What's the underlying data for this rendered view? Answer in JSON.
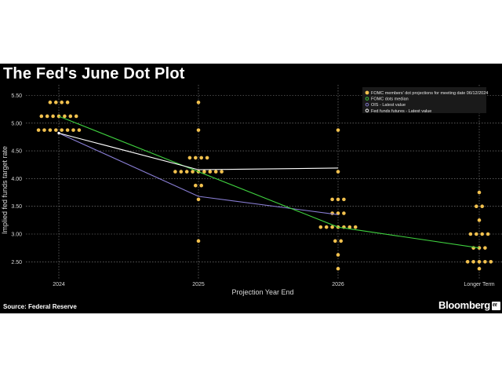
{
  "title": "The Fed's June Dot Plot",
  "source": "Source: Federal Reserve",
  "brand": "Bloomberg",
  "brand_mark": "ℓℓ",
  "colors": {
    "background": "#000000",
    "dots": "#f2c14e",
    "median": "#3fd13f",
    "ois": "#8a7fd6",
    "futures": "#ffffff",
    "grid": "#8c8c8c"
  },
  "chart_data": {
    "type": "scatter",
    "title": "The Fed's June Dot Plot",
    "xlabel": "Projection Year End",
    "ylabel": "Implied fed funds target rate",
    "categories": [
      "2024",
      "2025",
      "2026",
      "Longer Term"
    ],
    "ylim": [
      2.25,
      5.625
    ],
    "yticks": [
      "2.50",
      "3.00",
      "3.50",
      "4.00",
      "4.50",
      "5.00",
      "5.50"
    ],
    "grid": true,
    "legend_position": "top-right",
    "legend": [
      "FOMC members' dot projections for meeting date 06/12/2024",
      "FOMC dots median",
      "OIS - Latest value",
      "Fed funds futures - Latest value"
    ],
    "dot_projections": [
      {
        "category": "2024",
        "rate": 5.375,
        "count": 4
      },
      {
        "category": "2024",
        "rate": 5.125,
        "count": 7
      },
      {
        "category": "2024",
        "rate": 4.875,
        "count": 8
      },
      {
        "category": "2025",
        "rate": 5.375,
        "count": 1
      },
      {
        "category": "2025",
        "rate": 4.875,
        "count": 1
      },
      {
        "category": "2025",
        "rate": 4.375,
        "count": 4
      },
      {
        "category": "2025",
        "rate": 4.125,
        "count": 9
      },
      {
        "category": "2025",
        "rate": 3.875,
        "count": 2
      },
      {
        "category": "2025",
        "rate": 3.625,
        "count": 1
      },
      {
        "category": "2025",
        "rate": 2.875,
        "count": 1
      },
      {
        "category": "2026",
        "rate": 4.875,
        "count": 1
      },
      {
        "category": "2026",
        "rate": 4.125,
        "count": 1
      },
      {
        "category": "2026",
        "rate": 3.625,
        "count": 3
      },
      {
        "category": "2026",
        "rate": 3.375,
        "count": 3
      },
      {
        "category": "2026",
        "rate": 3.125,
        "count": 7
      },
      {
        "category": "2026",
        "rate": 2.875,
        "count": 2
      },
      {
        "category": "2026",
        "rate": 2.625,
        "count": 1
      },
      {
        "category": "2026",
        "rate": 2.375,
        "count": 1
      },
      {
        "category": "Longer Term",
        "rate": 3.75,
        "count": 1
      },
      {
        "category": "Longer Term",
        "rate": 3.5,
        "count": 2
      },
      {
        "category": "Longer Term",
        "rate": 3.25,
        "count": 1
      },
      {
        "category": "Longer Term",
        "rate": 3.0,
        "count": 4
      },
      {
        "category": "Longer Term",
        "rate": 2.75,
        "count": 3
      },
      {
        "category": "Longer Term",
        "rate": 2.5,
        "count": 5
      },
      {
        "category": "Longer Term",
        "rate": 2.375,
        "count": 1
      }
    ],
    "series": [
      {
        "values": [
          5.125,
          4.125,
          3.125,
          2.75
        ]
      },
      {
        "values": [
          4.82,
          3.68,
          3.35
        ]
      },
      {
        "values": [
          4.82,
          4.16,
          4.19
        ]
      }
    ]
  }
}
